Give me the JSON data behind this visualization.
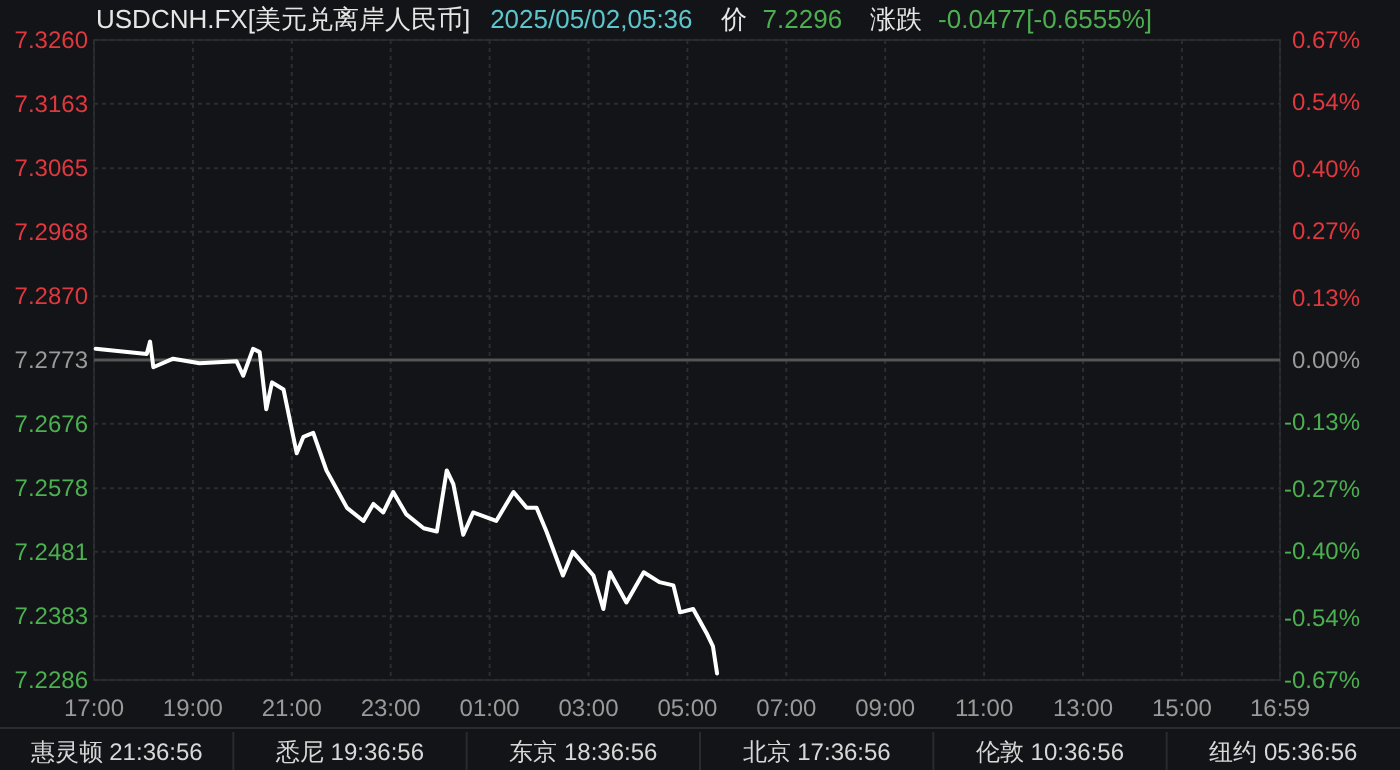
{
  "chart_data": {
    "type": "line",
    "title": "USDCNH.FX[美元兑离岸人民币]",
    "subtitle": "2025/05/02,05:36",
    "annotations": [
      "价",
      "7.2296",
      "涨跌",
      "-0.0477[-0.6555%]",
      "惠灵顿 21:36:56",
      "悉尼 19:36:56",
      "东京 18:36:56",
      "北京 17:36:56",
      "伦敦 10:36:56",
      "纽约 05:36:56"
    ],
    "series": [
      {
        "color": "#ffffff",
        "x": [
          "2025-05-01T17:02",
          "2025-05-01T18:04",
          "2025-05-01T18:08",
          "2025-05-01T18:12",
          "2025-05-01T18:36",
          "2025-05-01T19:08",
          "2025-05-01T19:53",
          "2025-05-01T20:01",
          "2025-05-01T20:13",
          "2025-05-01T20:21",
          "2025-05-01T20:29",
          "2025-05-01T20:36",
          "2025-05-01T20:50",
          "2025-05-01T21:06",
          "2025-05-01T21:14",
          "2025-05-01T21:26",
          "2025-05-01T21:42",
          "2025-05-01T22:07",
          "2025-05-01T22:27",
          "2025-05-01T22:39",
          "2025-05-01T22:51",
          "2025-05-01T23:03",
          "2025-05-01T23:19",
          "2025-05-01T23:40",
          "2025-05-01T23:56",
          "2025-05-02T00:08",
          "2025-05-02T00:16",
          "2025-05-02T00:28",
          "2025-05-02T00:40",
          "2025-05-02T01:08",
          "2025-05-02T01:29",
          "2025-05-02T01:45",
          "2025-05-02T01:57",
          "2025-05-02T02:09",
          "2025-05-02T02:29",
          "2025-05-02T02:41",
          "2025-05-02T03:06",
          "2025-05-02T03:18",
          "2025-05-02T03:26",
          "2025-05-02T03:46",
          "2025-05-02T04:07",
          "2025-05-02T04:26",
          "2025-05-02T04:43",
          "2025-05-02T04:51",
          "2025-05-02T05:07",
          "2025-05-02T05:23",
          "2025-05-02T05:31",
          "2025-05-02T05:36"
        ],
        "values": [
          7.279,
          7.2782,
          7.2801,
          7.2762,
          7.2775,
          7.2768,
          7.2771,
          7.2749,
          7.279,
          7.2785,
          7.2698,
          7.2739,
          7.2728,
          7.2631,
          7.2656,
          7.2662,
          7.2605,
          7.2548,
          7.2528,
          7.2554,
          7.2541,
          7.2572,
          7.2538,
          7.2517,
          7.2512,
          7.2605,
          7.2584,
          7.2507,
          7.2541,
          7.2528,
          7.2572,
          7.2548,
          7.2548,
          7.2512,
          7.2445,
          7.2481,
          7.2445,
          7.2394,
          7.245,
          7.2404,
          7.245,
          7.2435,
          7.243,
          7.2389,
          7.2394,
          7.2358,
          7.2337,
          7.2296
        ]
      }
    ],
    "xlim": [
      "2025-05-01T17:00",
      "2025-05-02T16:59"
    ],
    "xticks": [
      {
        "value": "2025-05-01T17:00",
        "label": "17:00"
      },
      {
        "value": "2025-05-01T19:00",
        "label": "19:00"
      },
      {
        "value": "2025-05-01T21:00",
        "label": "21:00"
      },
      {
        "value": "2025-05-01T23:00",
        "label": "23:00"
      },
      {
        "value": "2025-05-02T01:00",
        "label": "01:00"
      },
      {
        "value": "2025-05-02T03:00",
        "label": "03:00"
      },
      {
        "value": "2025-05-02T05:00",
        "label": "05:00"
      },
      {
        "value": "2025-05-02T07:00",
        "label": "07:00"
      },
      {
        "value": "2025-05-02T09:00",
        "label": "09:00"
      },
      {
        "value": "2025-05-02T11:00",
        "label": "11:00"
      },
      {
        "value": "2025-05-02T13:00",
        "label": "13:00"
      },
      {
        "value": "2025-05-02T15:00",
        "label": "15:00"
      },
      {
        "value": "2025-05-02T16:59",
        "label": "16:59"
      }
    ],
    "ylim": [
      7.2286,
      7.326
    ],
    "yticks": [
      {
        "value": 7.326,
        "label": "7.3260"
      },
      7.3163,
      7.3065,
      7.2968,
      {
        "value": 7.287,
        "label": "7.2870"
      },
      7.2773,
      7.2676,
      7.2578,
      7.2481,
      7.2383,
      7.2286
    ],
    "y2lim": [
      -0.67,
      0.67
    ],
    "y2ticks": [
      {
        "value": 0.67,
        "label": "0.67%"
      },
      {
        "value": 0.54,
        "label": "0.54%"
      },
      {
        "value": 0.4,
        "label": "0.40%"
      },
      {
        "value": 0.27,
        "label": "0.27%"
      },
      {
        "value": 0.13,
        "label": "0.13%"
      },
      {
        "value": 0,
        "label": "0.00%"
      },
      {
        "value": -0.13,
        "label": "-0.13%"
      },
      {
        "value": -0.27,
        "label": "-0.27%"
      },
      {
        "value": -0.4,
        "label": "-0.40%"
      },
      {
        "value": -0.54,
        "label": "-0.54%"
      },
      {
        "value": -0.67,
        "label": "-0.67%"
      }
    ],
    "ref_lines": [
      {
        "axis": "y",
        "value": 7.2773,
        "color": "#555555"
      }
    ],
    "grid": true,
    "marker": "none",
    "line_style": "solid"
  }
}
